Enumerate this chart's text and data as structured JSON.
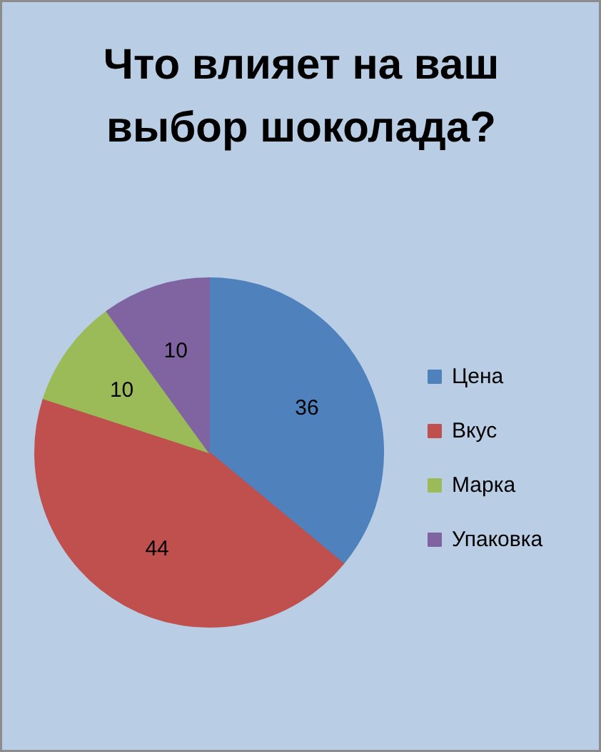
{
  "chart_data": {
    "type": "pie",
    "title": "Что влияет на ваш выбор шоколада?",
    "categories": [
      "Цена",
      "Вкус",
      "Марка",
      "Упаковка"
    ],
    "values": [
      36,
      44,
      10,
      10
    ],
    "colors": [
      "#4f81bd",
      "#c0504d",
      "#9bbb59",
      "#8064a2"
    ],
    "data_labels": true,
    "legend": "right"
  }
}
